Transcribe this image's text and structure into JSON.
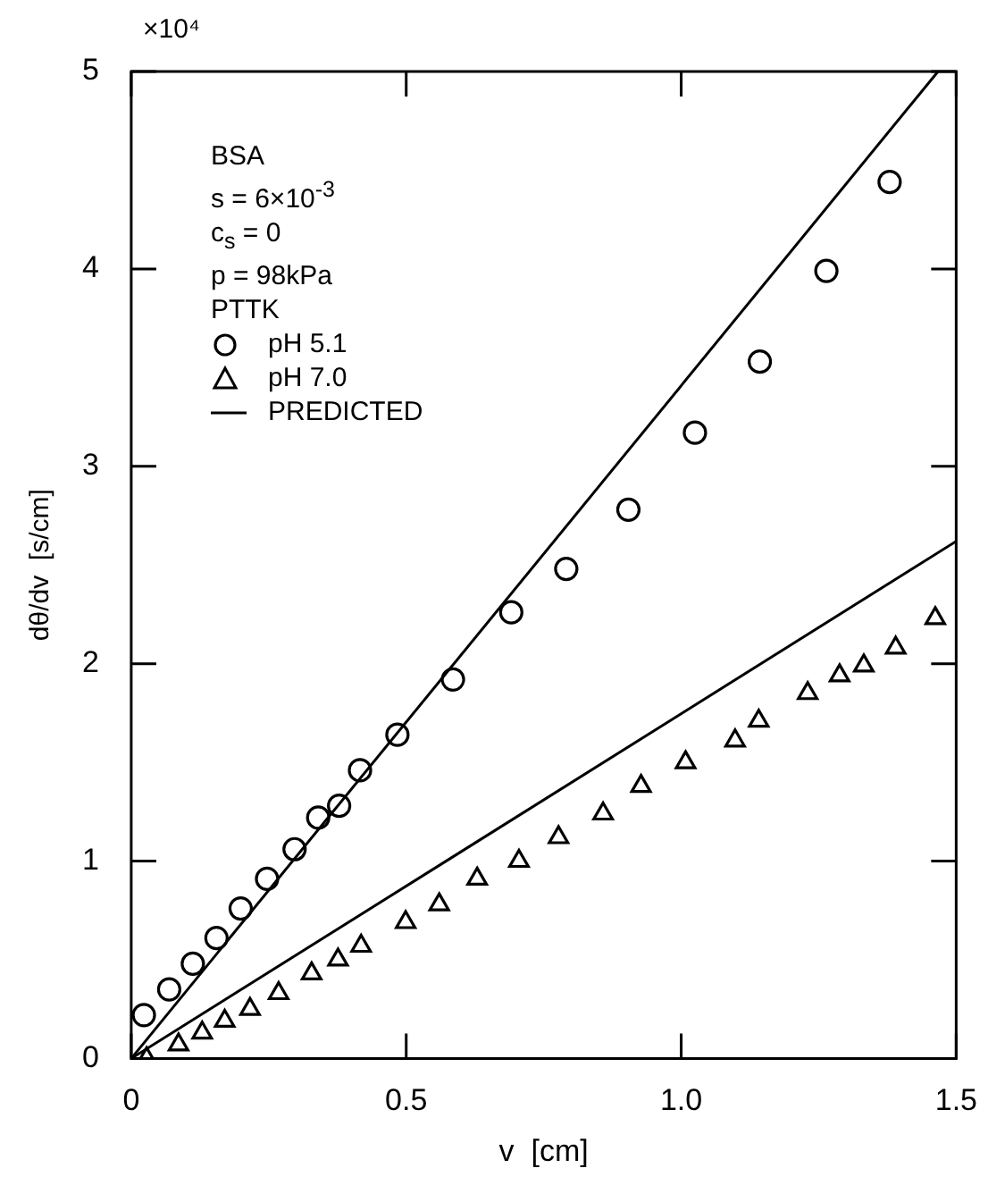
{
  "chart_data": {
    "type": "scatter",
    "xlabel": "v  [cm]",
    "ylabel": "dθ/dv  [s/cm]",
    "xlim": [
      0,
      1.5
    ],
    "xticks": [
      0,
      0.5,
      {
        "value": 1,
        "label": "1.0"
      },
      1.5
    ],
    "ylim": [
      0,
      5
    ],
    "yticks": [
      0,
      1,
      2,
      3,
      4,
      5
    ],
    "grid": false,
    "legend": "top left",
    "annotations": [
      "×10⁴",
      "BSA",
      "s = 6×10$^{-3}$",
      "c$_{s}$ = 0",
      "p = 98kPa",
      "PTTK"
    ],
    "series": [
      {
        "name": "pH 5.1",
        "marker": "circle",
        "color": "#000000",
        "x": [
          0.023,
          0.069,
          0.112,
          0.155,
          0.199,
          0.247,
          0.297,
          0.34,
          0.378,
          0.416,
          0.484,
          0.585,
          0.691,
          0.791,
          0.904,
          1.025,
          1.143,
          1.264,
          1.379
        ],
        "values": [
          0.22,
          0.35,
          0.48,
          0.61,
          0.76,
          0.91,
          1.06,
          1.22,
          1.28,
          1.46,
          1.64,
          1.92,
          2.26,
          2.48,
          2.78,
          3.17,
          3.53,
          3.99,
          4.44
        ]
      },
      {
        "name": "pH 7.0",
        "marker": "triangle",
        "color": "#000000",
        "x": [
          0.028,
          0.086,
          0.129,
          0.17,
          0.216,
          0.268,
          0.328,
          0.376,
          0.418,
          0.499,
          0.56,
          0.629,
          0.705,
          0.777,
          0.858,
          0.927,
          1.008,
          1.098,
          1.141,
          1.23,
          1.288,
          1.332,
          1.39,
          1.462
        ],
        "values": [
          0.0,
          0.07,
          0.13,
          0.19,
          0.25,
          0.33,
          0.43,
          0.5,
          0.57,
          0.69,
          0.78,
          0.91,
          1.0,
          1.12,
          1.24,
          1.38,
          1.5,
          1.61,
          1.71,
          1.85,
          1.94,
          1.99,
          2.08,
          2.23
        ]
      },
      {
        "name": "PREDICTED",
        "type": "line",
        "marker": "none",
        "line_style": "solid",
        "color": "#000000",
        "x": [
          0,
          1.467
        ],
        "values": [
          0,
          5
        ]
      },
      {
        "type": "line",
        "marker": "none",
        "line_style": "solid",
        "color": "#000000",
        "x": [
          0,
          1.5
        ],
        "values": [
          0,
          2.62
        ]
      }
    ]
  }
}
